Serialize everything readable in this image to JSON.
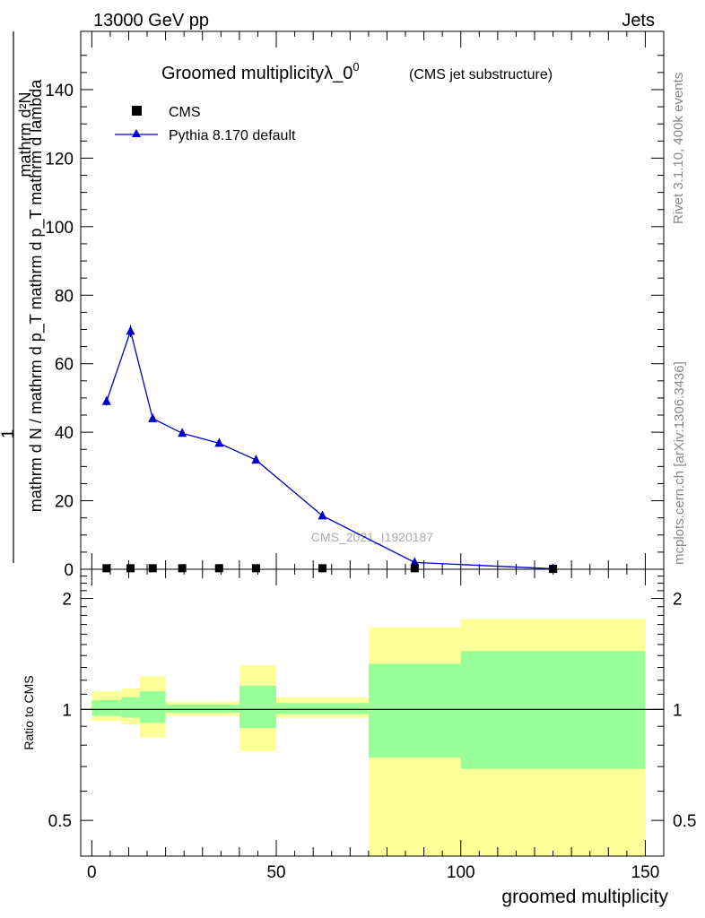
{
  "header": {
    "energy": "13000 GeV pp",
    "category": "Jets"
  },
  "side": {
    "rivet": "Rivet 3.1.10,  400k events",
    "mcplots": "mcplots.cern.ch [arXiv:1306.3436]"
  },
  "watermark": "CMS_2021_I1920187",
  "chart_data": {
    "type": "line",
    "title": "Groomed multiplicityλ_0",
    "title_superscript": "0",
    "subtitle": "(CMS jet substructure)",
    "xlabel": "groomed multiplicity",
    "ylabel": {
      "numerator": "mathrm d²N",
      "denominator": "mathrm d N / mathrm d p_T mathrm d p_T mathrm d lambda",
      "prefix": "1"
    },
    "ratio_ylabel": "Ratio to CMS",
    "xlim": [
      -3,
      155
    ],
    "ylim": [
      0,
      157
    ],
    "x_ticks": [
      0,
      50,
      100,
      150
    ],
    "y_ticks": [
      0,
      20,
      40,
      60,
      80,
      100,
      120,
      140
    ],
    "ratio_ylim": [
      0.4,
      2.4
    ],
    "ratio_ticks": [
      0.5,
      1,
      2
    ],
    "legend": [
      {
        "label": "CMS",
        "marker": "square",
        "color": "#000000"
      },
      {
        "label": "Pythia 8.170 default",
        "marker": "triangle",
        "color": "#0000cc"
      }
    ],
    "series": [
      {
        "name": "CMS",
        "x": [
          4,
          10.5,
          16.5,
          24.5,
          34.5,
          44.5,
          62.5,
          87.5,
          125
        ],
        "values": [
          0.3,
          0.3,
          0.3,
          0.3,
          0.3,
          0.3,
          0.3,
          0.3,
          0.1
        ]
      },
      {
        "name": "Pythia 8.170 default",
        "x": [
          4,
          10.5,
          16.5,
          24.5,
          34.5,
          44.5,
          62.5,
          87.5,
          125
        ],
        "values": [
          49,
          69.5,
          44,
          39.7,
          36.8,
          31.9,
          15.6,
          2.0,
          0.15
        ],
        "errors": [
          1.2,
          1.8,
          1.0,
          0.8,
          0.7,
          0.7,
          0.5,
          0.2,
          0.05
        ]
      }
    ],
    "ratio_bands": [
      {
        "x0": 0,
        "x1": 8,
        "inner": [
          0.96,
          1.06
        ],
        "outer": [
          0.93,
          1.12
        ]
      },
      {
        "x0": 8,
        "x1": 13,
        "inner": [
          0.95,
          1.08
        ],
        "outer": [
          0.91,
          1.14
        ]
      },
      {
        "x0": 13,
        "x1": 20,
        "inner": [
          0.92,
          1.12
        ],
        "outer": [
          0.84,
          1.23
        ]
      },
      {
        "x0": 20,
        "x1": 40,
        "inner": [
          0.98,
          1.03
        ],
        "outer": [
          0.96,
          1.05
        ]
      },
      {
        "x0": 40,
        "x1": 50,
        "inner": [
          0.89,
          1.16
        ],
        "outer": [
          0.77,
          1.32
        ]
      },
      {
        "x0": 50,
        "x1": 75,
        "inner": [
          0.97,
          1.04
        ],
        "outer": [
          0.95,
          1.08
        ]
      },
      {
        "x0": 75,
        "x1": 100,
        "inner": [
          0.74,
          1.33
        ],
        "outer": [
          0.4,
          1.67
        ]
      },
      {
        "x0": 100,
        "x1": 150,
        "inner": [
          0.69,
          1.44
        ],
        "outer": [
          0.4,
          1.76
        ]
      }
    ]
  }
}
